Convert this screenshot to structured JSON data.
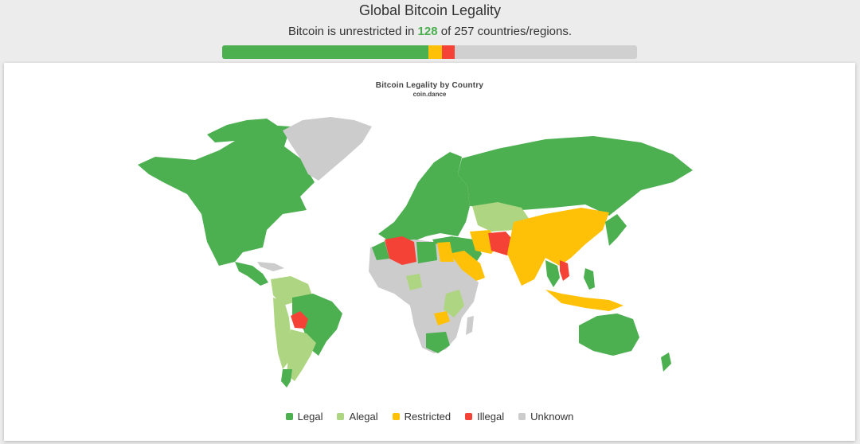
{
  "header": {
    "title": "Global Bitcoin Legality",
    "subtitle_prefix": "Bitcoin is unrestricted in ",
    "unrestricted_count": "128",
    "subtitle_suffix": " of 257 countries/regions."
  },
  "progress": {
    "total": 257,
    "segments": [
      {
        "status": "Legal",
        "count": 128,
        "color": "#4caf50"
      },
      {
        "status": "Restricted",
        "count": 8,
        "color": "#ffc107"
      },
      {
        "status": "Illegal",
        "count": 8,
        "color": "#f44336"
      }
    ]
  },
  "chart": {
    "title": "Bitcoin Legality by Country",
    "subtitle": "coin.dance"
  },
  "legend": [
    {
      "label": "Legal",
      "color": "#4caf50"
    },
    {
      "label": "Alegal",
      "color": "#aed581"
    },
    {
      "label": "Restricted",
      "color": "#ffc107"
    },
    {
      "label": "Illegal",
      "color": "#f44336"
    },
    {
      "label": "Unknown",
      "color": "#cccccc"
    }
  ]
}
